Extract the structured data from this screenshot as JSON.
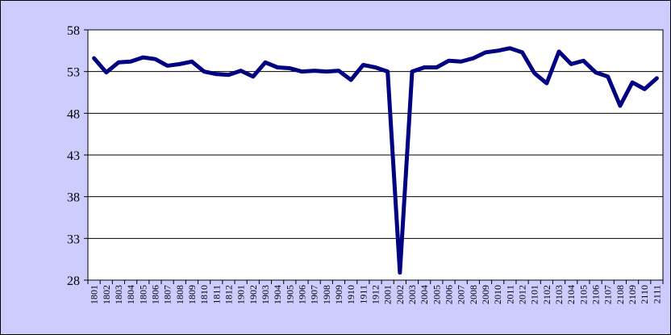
{
  "chart_data": {
    "type": "line",
    "title": "",
    "xlabel": "",
    "ylabel": "",
    "ylim": [
      28,
      58
    ],
    "yticks": [
      28,
      33,
      38,
      43,
      48,
      53,
      58
    ],
    "grid": true,
    "legend": "none",
    "colors": {
      "background": "#ccccff",
      "plot_area": "#ffffff",
      "line": "#000080",
      "grid": "#000000"
    },
    "categories": [
      "1801",
      "1802",
      "1803",
      "1804",
      "1805",
      "1806",
      "1807",
      "1808",
      "1809",
      "1810",
      "1811",
      "1812",
      "1901",
      "1902",
      "1903",
      "1904",
      "1905",
      "1906",
      "1907",
      "1908",
      "1909",
      "1910",
      "1911",
      "1912",
      "2001",
      "2002",
      "2003",
      "2004",
      "2005",
      "2006",
      "2007",
      "2008",
      "2009",
      "2010",
      "2011",
      "2012",
      "2101",
      "2102",
      "2103",
      "2104",
      "2105",
      "2106",
      "2107",
      "2108",
      "2109",
      "2110",
      "2111"
    ],
    "series": [
      {
        "values": [
          54.6,
          52.9,
          54.1,
          54.2,
          54.7,
          54.5,
          53.7,
          53.9,
          54.2,
          53.0,
          52.7,
          52.6,
          53.1,
          52.4,
          54.1,
          53.5,
          53.4,
          53.0,
          53.1,
          53.0,
          53.1,
          52.0,
          53.8,
          53.5,
          53.0,
          28.9,
          53.0,
          53.5,
          53.5,
          54.3,
          54.2,
          54.6,
          55.3,
          55.5,
          55.8,
          55.3,
          52.8,
          51.6,
          55.4,
          53.9,
          54.3,
          52.9,
          52.4,
          48.9,
          51.7,
          50.9,
          52.2
        ]
      }
    ]
  }
}
